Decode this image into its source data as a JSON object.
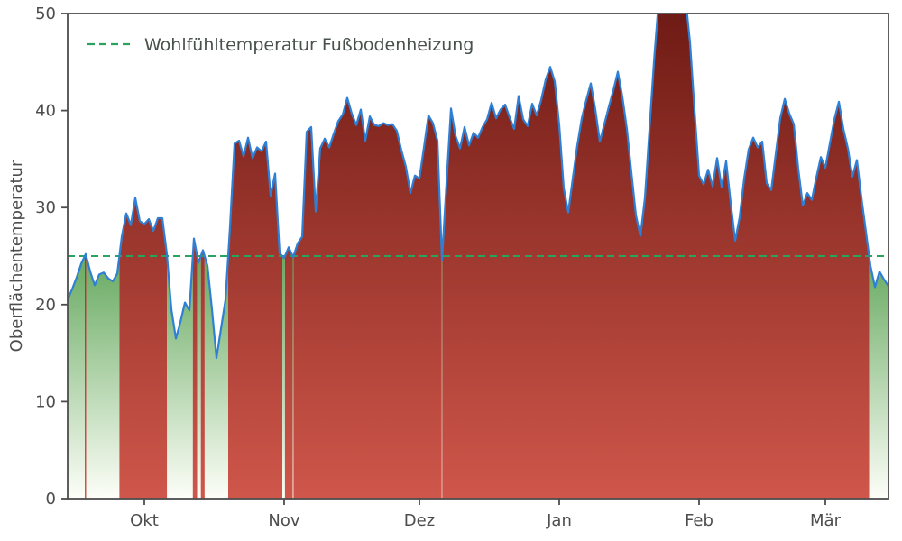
{
  "chart_data": {
    "type": "area",
    "title": "",
    "xlabel": "",
    "ylabel": "Oberflächentemperatur",
    "ylim": [
      0,
      50
    ],
    "yticks": [
      0,
      10,
      20,
      30,
      40,
      50
    ],
    "x_unit": "day-index (daily values, mid-September to mid-March)",
    "month_ticks": [
      {
        "day_index": 17,
        "label": "Okt"
      },
      {
        "day_index": 48,
        "label": "Nov"
      },
      {
        "day_index": 78,
        "label": "Dez"
      },
      {
        "day_index": 109,
        "label": "Jan"
      },
      {
        "day_index": 140,
        "label": "Feb"
      },
      {
        "day_index": 168,
        "label": "Mär"
      }
    ],
    "comfort_line": {
      "value": 25,
      "label": "Wohlfühltemperatur Fußbodenheizung",
      "color": "#2aa35f",
      "style": "dashed"
    },
    "legend_position": "upper left",
    "grid": false,
    "series": [
      {
        "name": "Oberflächentemperatur",
        "values": [
          20.5,
          21.6,
          22.8,
          24.2,
          25.2,
          23.4,
          22.0,
          23.1,
          23.3,
          22.7,
          22.4,
          23.2,
          27.0,
          29.4,
          28.2,
          31.0,
          28.6,
          28.3,
          28.8,
          27.6,
          28.9,
          28.9,
          25.2,
          19.5,
          16.5,
          18.2,
          20.2,
          19.4,
          26.8,
          24.3,
          25.6,
          24.0,
          19.5,
          14.5,
          17.5,
          20.5,
          28.0,
          36.6,
          36.9,
          35.3,
          37.2,
          35.1,
          36.2,
          35.8,
          36.8,
          31.2,
          33.5,
          25.3,
          24.8,
          25.9,
          24.9,
          26.3,
          27.0,
          37.8,
          38.3,
          29.6,
          36.1,
          37.1,
          36.2,
          37.6,
          38.9,
          39.6,
          41.3,
          39.7,
          38.5,
          40.1,
          36.9,
          39.4,
          38.5,
          38.4,
          38.7,
          38.5,
          38.6,
          37.9,
          35.9,
          34.2,
          31.5,
          33.3,
          33.0,
          36.2,
          39.5,
          38.7,
          36.9,
          24.6,
          32.5,
          40.2,
          37.4,
          36.1,
          38.3,
          36.4,
          37.7,
          37.2,
          38.3,
          39.1,
          40.8,
          39.2,
          40.1,
          40.6,
          39.3,
          38.1,
          41.5,
          39.1,
          38.4,
          40.7,
          39.5,
          41.1,
          43.2,
          44.5,
          43.0,
          38.5,
          32.0,
          29.5,
          33.0,
          36.4,
          39.2,
          41.1,
          42.8,
          40.1,
          36.8,
          38.6,
          40.4,
          42.1,
          44.0,
          41.4,
          38.1,
          33.6,
          29.2,
          27.1,
          31.0,
          38.0,
          45.0,
          51.0,
          52.5,
          53.5,
          54.0,
          53.5,
          52.5,
          51.5,
          47.0,
          40.0,
          33.3,
          32.4,
          33.9,
          32.2,
          35.1,
          32.1,
          34.8,
          30.5,
          26.6,
          29.0,
          33.0,
          36.0,
          37.2,
          36.2,
          36.8,
          32.5,
          31.8,
          35.5,
          39.2,
          41.2,
          39.7,
          38.6,
          34.0,
          30.2,
          31.5,
          30.8,
          33.1,
          35.2,
          34.1,
          36.6,
          39.1,
          40.9,
          38.1,
          36.1,
          33.2,
          34.9,
          31.0,
          27.5,
          24.0,
          21.8,
          23.4,
          22.6,
          21.9
        ]
      }
    ],
    "colors": {
      "line": "#2f80d5",
      "fill_above_top": "#6f1b15",
      "fill_above_bottom": "#cf564a",
      "fill_below_top": "#66a95f",
      "fill_below_bottom": "#fdfef8",
      "axis": "#4d4d4d",
      "text": "#4d4d4d",
      "legend_text": "#47524c"
    }
  }
}
